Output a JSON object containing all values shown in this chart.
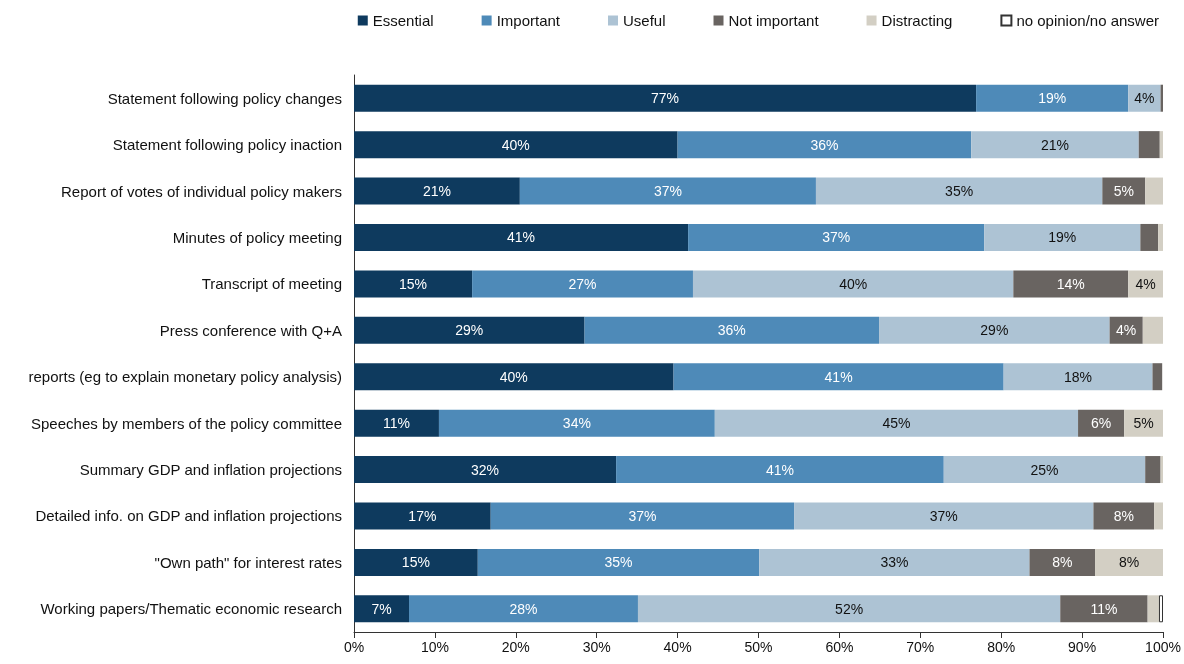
{
  "chart_data": {
    "type": "bar",
    "orientation": "horizontal",
    "stacked": true,
    "legend": "top right",
    "grid": false,
    "categories": [
      "Statement following policy changes",
      "Statement following policy inaction",
      "Report of votes of individual policy makers",
      "Minutes of policy meeting",
      "Transcript of meeting",
      "Press conference with Q+A",
      "reports (eg to explain monetary policy analysis)",
      "Speeches by members of the policy committee",
      "Summary GDP and inflation projections",
      "Detailed info. on GDP and inflation projections",
      "\"Own path\" for interest rates",
      "Working papers/Thematic economic research"
    ],
    "xlim": [
      0,
      100
    ],
    "xticks": [
      {
        "value": 0,
        "label": "0%"
      },
      {
        "value": 10,
        "label": "10%"
      },
      {
        "value": 20,
        "label": "20%"
      },
      {
        "value": 30,
        "label": "30%"
      },
      {
        "value": 40,
        "label": "40%"
      },
      {
        "value": 50,
        "label": "50%"
      },
      {
        "value": 60,
        "label": "60%"
      },
      {
        "value": 70,
        "label": "70%"
      },
      {
        "value": 80,
        "label": "80%"
      },
      {
        "value": 90,
        "label": "90%"
      },
      {
        "value": 100,
        "label": "100%"
      }
    ],
    "series": [
      {
        "name": "Essential",
        "color": "#0e3a5e",
        "values": [
          76.9,
          40.0,
          20.5,
          41.3,
          14.6,
          28.5,
          39.5,
          10.5,
          32.4,
          16.9,
          15.3,
          6.8
        ],
        "value_labels": [
          "77%",
          "40%",
          "21%",
          "41%",
          "15%",
          "29%",
          "40%",
          "11%",
          "32%",
          "17%",
          "15%",
          "7%"
        ]
      },
      {
        "name": "Important",
        "color": "#4e8ab8",
        "values": [
          18.8,
          36.3,
          36.6,
          36.6,
          27.3,
          36.4,
          40.8,
          34.1,
          40.5,
          37.5,
          34.8,
          28.3
        ],
        "value_labels": [
          "19%",
          "36%",
          "37%",
          "37%",
          "27%",
          "36%",
          "41%",
          "34%",
          "41%",
          "37%",
          "35%",
          "28%"
        ]
      },
      {
        "name": "Useful",
        "color": "#adc3d4",
        "values": [
          4.0,
          20.7,
          35.4,
          19.3,
          39.6,
          28.5,
          18.4,
          44.9,
          24.9,
          37.0,
          33.4,
          52.2
        ],
        "value_labels": [
          "4%",
          "21%",
          "35%",
          "19%",
          "40%",
          "29%",
          "18%",
          "45%",
          "25%",
          "37%",
          "33%",
          "52%"
        ]
      },
      {
        "name": "Not important",
        "color": "#696461",
        "values": [
          0.3,
          2.6,
          5.3,
          2.2,
          14.2,
          4.1,
          1.2,
          5.7,
          1.9,
          7.5,
          8.1,
          10.8
        ],
        "value_labels": [
          null,
          null,
          "5%",
          null,
          "14%",
          "4%",
          null,
          "6%",
          null,
          "8%",
          "8%",
          "11%"
        ]
      },
      {
        "name": "Distracting",
        "color": "#d3cfc4",
        "values": [
          0,
          0.4,
          2.2,
          0.6,
          4.3,
          2.5,
          null,
          4.8,
          0.3,
          1.1,
          8.4,
          1.4
        ],
        "value_labels": [
          null,
          null,
          null,
          null,
          "4%",
          null,
          null,
          "5%",
          null,
          null,
          "8%",
          null
        ]
      },
      {
        "name": "no opinion/no answer",
        "color": "#ffffff",
        "values": [
          0,
          0,
          0,
          0,
          0,
          0,
          0,
          0,
          0,
          0,
          0,
          0.5
        ]
      }
    ]
  }
}
